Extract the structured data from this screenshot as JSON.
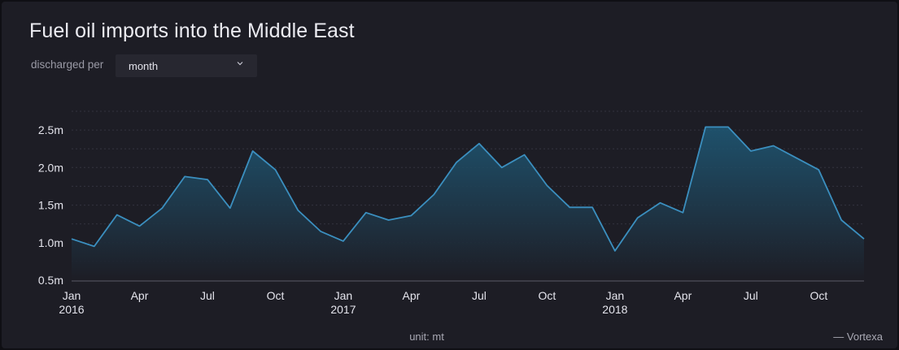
{
  "header": {
    "title": "Fuel oil imports into the Middle East"
  },
  "controls": {
    "label": "discharged per",
    "select_value": "month",
    "select_icon": "chevron-down-icon"
  },
  "footer": {
    "unit": "unit: mt",
    "credit": "— Vortexa"
  },
  "colors": {
    "line": "#3b8fbf",
    "area_top": "#1f5a78",
    "area_bottom": "#1d1d25",
    "grid": "#3a3a46",
    "axis": "#5a5a66"
  },
  "chart_data": {
    "type": "area",
    "title": "Fuel oil imports into the Middle East",
    "xlabel": "",
    "ylabel": "",
    "unit": "mt",
    "grid": true,
    "x": [
      "2016-01",
      "2016-02",
      "2016-03",
      "2016-04",
      "2016-05",
      "2016-06",
      "2016-07",
      "2016-08",
      "2016-09",
      "2016-10",
      "2016-11",
      "2016-12",
      "2017-01",
      "2017-02",
      "2017-03",
      "2017-04",
      "2017-05",
      "2017-06",
      "2017-07",
      "2017-08",
      "2017-09",
      "2017-10",
      "2017-11",
      "2017-12",
      "2018-01",
      "2018-02",
      "2018-03",
      "2018-04",
      "2018-05",
      "2018-06",
      "2018-07",
      "2018-08",
      "2018-09",
      "2018-10",
      "2018-11",
      "2018-12"
    ],
    "series": [
      {
        "values": [
          1.05,
          0.95,
          1.37,
          1.22,
          1.46,
          1.88,
          1.84,
          1.46,
          2.22,
          1.97,
          1.43,
          1.15,
          1.02,
          1.4,
          1.3,
          1.36,
          1.64,
          2.07,
          2.32,
          2.0,
          2.17,
          1.76,
          1.47,
          1.47,
          0.89,
          1.33,
          1.53,
          1.4,
          2.54,
          2.54,
          2.22,
          2.29,
          2.13,
          1.97,
          1.3,
          1.05
        ]
      }
    ],
    "ylim": [
      0.5,
      2.75
    ],
    "y_ticks": [
      {
        "value": 0.5,
        "label": "0.5m"
      },
      {
        "value": 1.0,
        "label": "1.0m"
      },
      {
        "value": 1.5,
        "label": "1.5m"
      },
      {
        "value": 2.0,
        "label": "2.0m"
      },
      {
        "value": 2.5,
        "label": "2.5m"
      }
    ],
    "x_ticks": [
      {
        "index": 0,
        "label": "Jan",
        "year": "2016"
      },
      {
        "index": 3,
        "label": "Apr",
        "year": ""
      },
      {
        "index": 6,
        "label": "Jul",
        "year": ""
      },
      {
        "index": 9,
        "label": "Oct",
        "year": ""
      },
      {
        "index": 12,
        "label": "Jan",
        "year": "2017"
      },
      {
        "index": 15,
        "label": "Apr",
        "year": ""
      },
      {
        "index": 18,
        "label": "Jul",
        "year": ""
      },
      {
        "index": 21,
        "label": "Oct",
        "year": ""
      },
      {
        "index": 24,
        "label": "Jan",
        "year": "2018"
      },
      {
        "index": 27,
        "label": "Apr",
        "year": ""
      },
      {
        "index": 30,
        "label": "Jul",
        "year": ""
      },
      {
        "index": 33,
        "label": "Oct",
        "year": ""
      }
    ]
  }
}
